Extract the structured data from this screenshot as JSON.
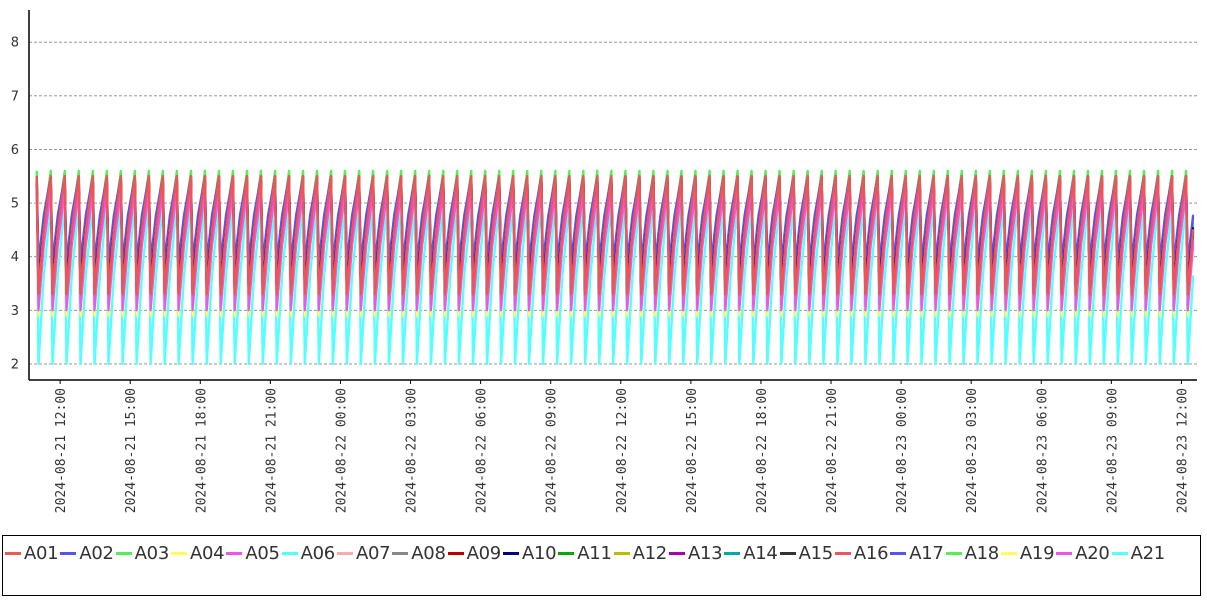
{
  "chart_data": {
    "type": "line",
    "title": "",
    "xlabel": "",
    "ylabel": "",
    "ylim": [
      1.7,
      8.6
    ],
    "yticks": [
      2,
      3,
      4,
      5,
      6,
      7,
      8
    ],
    "grid": "horizontal-dashed",
    "legend_position": "bottom",
    "x_range": [
      "2024-08-21 10:40",
      "2024-08-23 12:40"
    ],
    "xtick_labels": [
      "2024-08-21 12:00",
      "2024-08-21 15:00",
      "2024-08-21 18:00",
      "2024-08-21 21:00",
      "2024-08-22 00:00",
      "2024-08-22 03:00",
      "2024-08-22 06:00",
      "2024-08-22 09:00",
      "2024-08-22 12:00",
      "2024-08-22 15:00",
      "2024-08-22 18:00",
      "2024-08-22 21:00",
      "2024-08-23 00:00",
      "2024-08-23 03:00",
      "2024-08-23 06:00",
      "2024-08-23 09:00",
      "2024-08-23 12:00"
    ],
    "cycle_pattern": {
      "start": "2024-08-21 11:00",
      "end": "2024-08-23 12:30",
      "period_minutes": 36,
      "note": "sawtooth: slow rise to peak, sharp drop to trough"
    },
    "series": [
      {
        "name": "A01",
        "color": "#ee5555",
        "trough": 3.3,
        "peak": 5.5
      },
      {
        "name": "A02",
        "color": "#5555ee",
        "trough": 3.9,
        "peak": 5.5
      },
      {
        "name": "A03",
        "color": "#55ee55",
        "trough": 3.4,
        "peak": 5.6
      },
      {
        "name": "A04",
        "color": "#ffff55",
        "trough": 2.9,
        "peak": 5.2
      },
      {
        "name": "A05",
        "color": "#ee55ee",
        "trough": 3.0,
        "peak": 5.2
      },
      {
        "name": "A06",
        "color": "#55ffff",
        "trough": 2.0,
        "peak": 5.0
      },
      {
        "name": "A07",
        "color": "#ffaaaa",
        "trough": 3.2,
        "peak": 5.3
      },
      {
        "name": "A08",
        "color": "#888888",
        "trough": 3.3,
        "peak": 5.3
      },
      {
        "name": "A09",
        "color": "#bb0000",
        "trough": 3.3,
        "peak": 5.4
      },
      {
        "name": "A10",
        "color": "#00008b",
        "trough": 3.5,
        "peak": 5.4
      },
      {
        "name": "A11",
        "color": "#00aa00",
        "trough": 3.4,
        "peak": 5.4
      },
      {
        "name": "A12",
        "color": "#bbbb00",
        "trough": 3.3,
        "peak": 5.3
      },
      {
        "name": "A13",
        "color": "#aa00aa",
        "trough": 3.4,
        "peak": 5.4
      },
      {
        "name": "A14",
        "color": "#00aaaa",
        "trough": 3.3,
        "peak": 5.3
      },
      {
        "name": "A15",
        "color": "#333333",
        "trough": 3.3,
        "peak": 5.4
      },
      {
        "name": "A16",
        "color": "#ee5555",
        "trough": 3.3,
        "peak": 5.5
      },
      {
        "name": "A17",
        "color": "#5555ee",
        "trough": 3.8,
        "peak": 5.5
      },
      {
        "name": "A18",
        "color": "#55ee55",
        "trough": 3.5,
        "peak": 5.6
      },
      {
        "name": "A19",
        "color": "#ffff55",
        "trough": 3.0,
        "peak": 5.3
      },
      {
        "name": "A20",
        "color": "#ee55ee",
        "trough": 3.1,
        "peak": 5.3
      },
      {
        "name": "A21",
        "color": "#55ffff",
        "trough": 2.0,
        "peak": 5.0
      }
    ]
  }
}
